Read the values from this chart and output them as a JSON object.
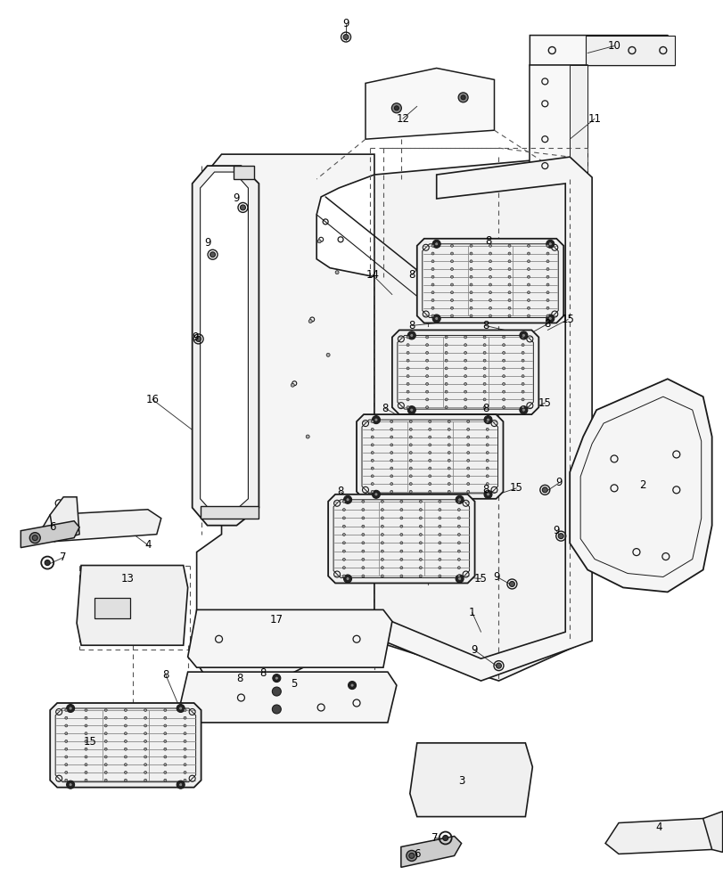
{
  "bg_color": "#ffffff",
  "lc": "#1a1a1a",
  "fig_width": 8.12,
  "fig_height": 10.0,
  "dpi": 100
}
